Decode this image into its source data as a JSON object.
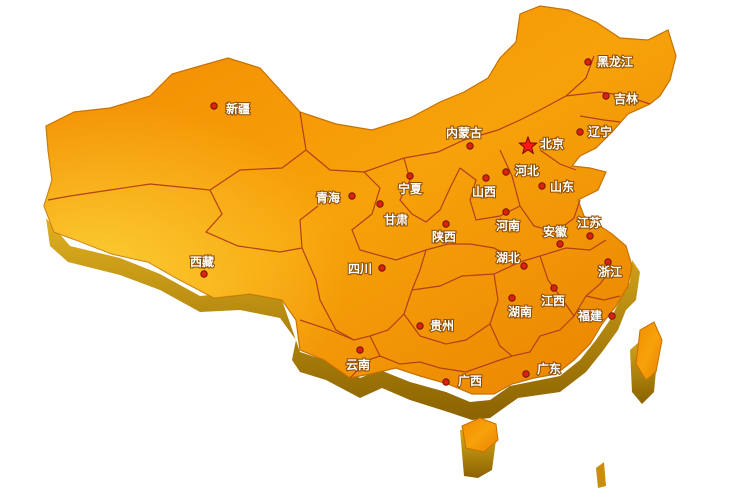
{
  "map": {
    "colors": {
      "land_top": "#f7a20a",
      "land_highlight": "#ffd24a",
      "land_side": "#b8860b",
      "land_side_dark": "#8a6200",
      "border": "#b3401a",
      "marker": "#d9230f",
      "capital_star": "#ff1a1a"
    },
    "capital": {
      "name": "北京",
      "marker": "star-icon"
    },
    "regions": [
      {
        "id": "heilongjiang",
        "name": "黑龙江"
      },
      {
        "id": "jilin",
        "name": "吉林"
      },
      {
        "id": "liaoning",
        "name": "辽宁"
      },
      {
        "id": "neimenggu",
        "name": "内蒙古"
      },
      {
        "id": "xinjiang",
        "name": "新疆"
      },
      {
        "id": "beijing",
        "name": "北京"
      },
      {
        "id": "hebei",
        "name": "河北"
      },
      {
        "id": "shandong",
        "name": "山东"
      },
      {
        "id": "shanxi",
        "name": "山西"
      },
      {
        "id": "ningxia",
        "name": "宁夏"
      },
      {
        "id": "qinghai",
        "name": "青海"
      },
      {
        "id": "gansu",
        "name": "甘肃"
      },
      {
        "id": "jiangsu",
        "name": "江苏"
      },
      {
        "id": "henan",
        "name": "河南"
      },
      {
        "id": "anhui",
        "name": "安徽"
      },
      {
        "id": "shaanxi",
        "name": "陕西"
      },
      {
        "id": "xizang",
        "name": "西藏"
      },
      {
        "id": "hubei",
        "name": "湖北"
      },
      {
        "id": "zhejiang",
        "name": "浙江"
      },
      {
        "id": "sichuan",
        "name": "四川"
      },
      {
        "id": "jiangxi",
        "name": "江西"
      },
      {
        "id": "fujian",
        "name": "福建"
      },
      {
        "id": "hunan",
        "name": "湖南"
      },
      {
        "id": "guizhou",
        "name": "贵州"
      },
      {
        "id": "yunnan",
        "name": "云南"
      },
      {
        "id": "guangdong",
        "name": "广东"
      },
      {
        "id": "guangxi",
        "name": "广西"
      }
    ]
  }
}
